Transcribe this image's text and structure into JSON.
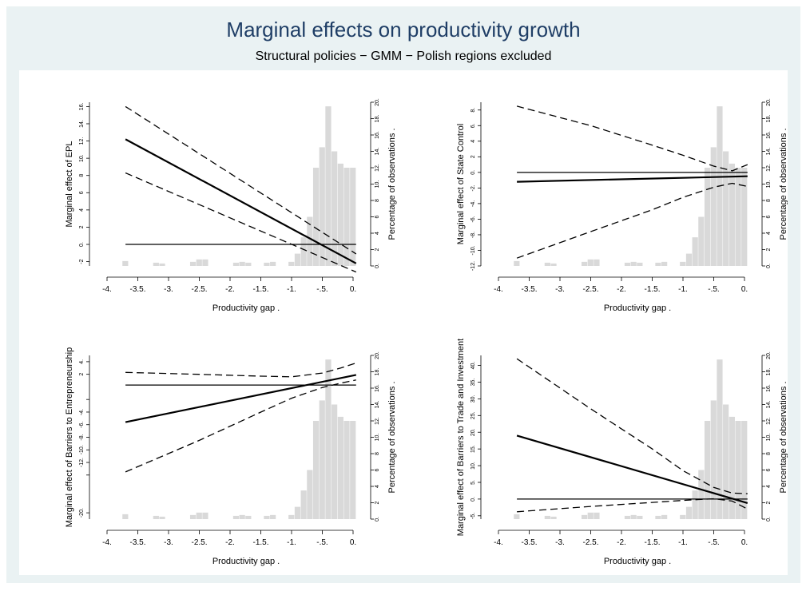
{
  "title": "Marginal effects on productivity growth",
  "subtitle": "Structural policies − GMM − Polish regions excluded",
  "colors": {
    "background": "#eaf2f3",
    "title": "#1f3e66",
    "histogram": "#d9d9d9",
    "lines": "#000000"
  },
  "chart_data": [
    {
      "type": "line",
      "xlabel": "Productivity gap",
      "ylabel": "Marginal effect of EPL",
      "y2label": "Percentage of observations",
      "xlim": [
        -4,
        0
      ],
      "ylim": [
        -2.5,
        16.5
      ],
      "y2lim": [
        0,
        20
      ],
      "xticks": [
        "-4.",
        "-3.5.",
        "-3.",
        "-2.5.",
        "-2.",
        "-1.5.",
        "-1.",
        "-.5.",
        "0."
      ],
      "yticks": [
        "-2",
        "0.",
        "2",
        "4",
        "6",
        "8",
        "10.",
        "12.",
        "14.",
        "16."
      ],
      "y2ticks": [
        "0.",
        "2",
        "4",
        "6",
        "8",
        "10.",
        "12.",
        "14.",
        "16.",
        "18.",
        "20."
      ],
      "yticks_values": [
        -2,
        0,
        2,
        4,
        6,
        8,
        10,
        12,
        14,
        16
      ],
      "y2ticks_values": [
        0,
        2,
        4,
        6,
        8,
        10,
        12,
        14,
        16,
        18,
        20
      ],
      "series": [
        {
          "style": "solid",
          "x": [
            -3.7,
            0.05
          ],
          "y": [
            12.2,
            -2.2
          ]
        },
        {
          "style": "dashed",
          "x": [
            -3.7,
            0.05
          ],
          "y": [
            16.0,
            -1.1
          ]
        },
        {
          "style": "dashed",
          "x": [
            -3.7,
            0.05
          ],
          "y": [
            8.3,
            -3.2
          ]
        },
        {
          "style": "solid",
          "x": [
            -3.7,
            0.05
          ],
          "y": [
            0,
            0
          ]
        }
      ],
      "histogram": {
        "bins": [
          -3.7,
          -3.2,
          -3.1,
          -2.6,
          -2.5,
          -2.4,
          -1.9,
          -1.8,
          -1.7,
          -1.4,
          -1.3,
          -1.0,
          -0.9,
          -0.8,
          -0.7,
          -0.6,
          -0.5,
          -0.4,
          -0.3,
          -0.2,
          -0.1,
          0.0
        ],
        "values": [
          0.6,
          0.4,
          0.3,
          0.5,
          0.8,
          0.8,
          0.4,
          0.5,
          0.4,
          0.4,
          0.5,
          0.5,
          1.5,
          3.5,
          6.0,
          12.0,
          14.5,
          19.5,
          14.0,
          12.5,
          12.0,
          12.0
        ]
      }
    },
    {
      "type": "line",
      "xlabel": "Productivity gap",
      "ylabel": "Marginal effect of State Control",
      "y2label": "Percentage of observations",
      "xlim": [
        -4,
        0
      ],
      "ylim": [
        -12,
        9
      ],
      "y2lim": [
        0,
        20
      ],
      "xticks": [
        "-4.",
        "-3.5.",
        "-3.",
        "-2.5.",
        "-2.",
        "-1.5.",
        "-1.",
        "-.5.",
        "0."
      ],
      "yticks": [
        "-12.",
        "-10.",
        "-8.",
        "-6.",
        "-4.",
        "-2.",
        "0.",
        "2",
        "4",
        "6.",
        "8."
      ],
      "y2ticks": [
        "0.",
        "2",
        "4",
        "6",
        "8",
        "10.",
        "12.",
        "14.",
        "16.",
        "18.",
        "20."
      ],
      "yticks_values": [
        -12,
        -10,
        -8,
        -6,
        -4,
        -2,
        0,
        2,
        4,
        6,
        8
      ],
      "y2ticks_values": [
        0,
        2,
        4,
        6,
        8,
        10,
        12,
        14,
        16,
        18,
        20
      ],
      "series": [
        {
          "style": "solid",
          "x": [
            -3.7,
            0.05
          ],
          "y": [
            -1.2,
            -0.5
          ]
        },
        {
          "style": "dashed",
          "x": [
            -3.7,
            -2.5,
            -1.5,
            -1.0,
            -0.5,
            -0.2,
            0.05
          ],
          "y": [
            8.5,
            6.0,
            3.5,
            2.2,
            0.8,
            0.2,
            1.0
          ]
        },
        {
          "style": "dashed",
          "x": [
            -3.7,
            -2.5,
            -1.5,
            -1.0,
            -0.5,
            -0.2,
            0.05
          ],
          "y": [
            -11.0,
            -7.6,
            -4.8,
            -3.2,
            -1.9,
            -1.4,
            -1.8
          ]
        },
        {
          "style": "solid",
          "x": [
            -3.7,
            0.05
          ],
          "y": [
            0,
            0
          ]
        }
      ],
      "histogram": {
        "bins": [
          -3.7,
          -3.2,
          -3.1,
          -2.6,
          -2.5,
          -2.4,
          -1.9,
          -1.8,
          -1.7,
          -1.4,
          -1.3,
          -1.0,
          -0.9,
          -0.8,
          -0.7,
          -0.6,
          -0.5,
          -0.4,
          -0.3,
          -0.2,
          -0.1,
          0.0
        ],
        "values": [
          0.6,
          0.4,
          0.3,
          0.5,
          0.8,
          0.8,
          0.4,
          0.5,
          0.4,
          0.4,
          0.5,
          0.5,
          1.5,
          3.5,
          6.0,
          12.0,
          14.5,
          19.5,
          14.0,
          12.5,
          12.0,
          12.0
        ]
      }
    },
    {
      "type": "line",
      "xlabel": "Productivity gap",
      "ylabel": "Marginal effect of Barriers to Entrepreneurship",
      "y2label": "Percentage of observations",
      "xlim": [
        -4,
        0
      ],
      "ylim": [
        -21,
        5
      ],
      "y2lim": [
        0,
        20
      ],
      "xticks": [
        "-4.",
        "-3.5.",
        "-3.",
        "-2.5.",
        "-2.",
        "-1.5.",
        "-1.",
        "-.5.",
        "0."
      ],
      "yticks": [
        "-20.",
        "",
        "-12.",
        "-10.",
        "-8.",
        "-6.",
        "-4.",
        "",
        "2",
        "4."
      ],
      "y2ticks": [
        "0.",
        "2",
        "4",
        "6",
        "8",
        "10.",
        "12.",
        "14.",
        "16.",
        "18.",
        "20."
      ],
      "yticks_values": [
        -20,
        -14,
        -12,
        -10,
        -8,
        -6,
        -4,
        -2,
        2,
        4
      ],
      "y2ticks_values": [
        0,
        2,
        4,
        6,
        8,
        10,
        12,
        14,
        16,
        18,
        20
      ],
      "series": [
        {
          "style": "solid",
          "x": [
            -3.7,
            0.05
          ],
          "y": [
            -5.6,
            1.9
          ]
        },
        {
          "style": "dashed",
          "x": [
            -3.7,
            -2.5,
            -1.5,
            -1.0,
            -0.5,
            -0.2,
            0.05
          ],
          "y": [
            2.3,
            2.0,
            1.7,
            1.6,
            2.2,
            3.0,
            3.8
          ]
        },
        {
          "style": "dashed",
          "x": [
            -3.7,
            -2.5,
            -1.5,
            -1.0,
            -0.5,
            -0.2,
            0.05
          ],
          "y": [
            -13.5,
            -8.5,
            -4.0,
            -1.8,
            -0.1,
            0.6,
            1.1
          ]
        },
        {
          "style": "solid",
          "x": [
            -3.7,
            0.05
          ],
          "y": [
            0.3,
            0.3
          ]
        }
      ],
      "histogram": {
        "bins": [
          -3.7,
          -3.2,
          -3.1,
          -2.6,
          -2.5,
          -2.4,
          -1.9,
          -1.8,
          -1.7,
          -1.4,
          -1.3,
          -1.0,
          -0.9,
          -0.8,
          -0.7,
          -0.6,
          -0.5,
          -0.4,
          -0.3,
          -0.2,
          -0.1,
          0.0
        ],
        "values": [
          0.6,
          0.4,
          0.3,
          0.5,
          0.8,
          0.8,
          0.4,
          0.5,
          0.4,
          0.4,
          0.5,
          0.5,
          1.5,
          3.5,
          6.0,
          12.0,
          14.5,
          19.5,
          14.0,
          12.5,
          12.0,
          12.0
        ]
      }
    },
    {
      "type": "line",
      "xlabel": "Productivity gap",
      "ylabel": "Marginal effect of Barriers to Trade and Investment",
      "y2label": "Percentage of observations",
      "xlim": [
        -4,
        0
      ],
      "ylim": [
        -6,
        43
      ],
      "y2lim": [
        0,
        20
      ],
      "xticks": [
        "-4.",
        "-3.5.",
        "-3.",
        "-2.5.",
        "-2.",
        "-1.5.",
        "-1.",
        "-.5.",
        "0."
      ],
      "yticks": [
        "-5.",
        "0.",
        "5.",
        "10.",
        "15.",
        "20.",
        "25.",
        "30.",
        "35.",
        "40."
      ],
      "y2ticks": [
        "0.",
        "2",
        "4",
        "6",
        "8",
        "10.",
        "12.",
        "14.",
        "16.",
        "18.",
        "20."
      ],
      "yticks_values": [
        -5,
        0,
        5,
        10,
        15,
        20,
        25,
        30,
        35,
        40
      ],
      "y2ticks_values": [
        0,
        2,
        4,
        6,
        8,
        10,
        12,
        14,
        16,
        18,
        20
      ],
      "series": [
        {
          "style": "solid",
          "x": [
            -3.7,
            0.05
          ],
          "y": [
            19.0,
            -1.2
          ]
        },
        {
          "style": "dashed",
          "x": [
            -3.7,
            -2.5,
            -1.5,
            -1.0,
            -0.5,
            -0.2,
            0.05
          ],
          "y": [
            42.0,
            27.0,
            15.0,
            8.5,
            3.5,
            1.8,
            1.6
          ]
        },
        {
          "style": "dashed",
          "x": [
            -3.7,
            -2.5,
            -1.5,
            -1.0,
            -0.5,
            -0.2,
            0.05
          ],
          "y": [
            -3.8,
            -2.2,
            -1.0,
            -0.4,
            0.1,
            -0.6,
            -3.0
          ]
        },
        {
          "style": "solid",
          "x": [
            -3.7,
            0.05
          ],
          "y": [
            0,
            0
          ]
        }
      ],
      "histogram": {
        "bins": [
          -3.7,
          -3.2,
          -3.1,
          -2.6,
          -2.5,
          -2.4,
          -1.9,
          -1.8,
          -1.7,
          -1.4,
          -1.3,
          -1.0,
          -0.9,
          -0.8,
          -0.7,
          -0.6,
          -0.5,
          -0.4,
          -0.3,
          -0.2,
          -0.1,
          0.0
        ],
        "values": [
          0.6,
          0.4,
          0.3,
          0.5,
          0.8,
          0.8,
          0.4,
          0.5,
          0.4,
          0.4,
          0.5,
          0.5,
          1.5,
          3.5,
          6.0,
          12.0,
          14.5,
          19.5,
          14.0,
          12.5,
          12.0,
          12.0
        ]
      }
    }
  ]
}
